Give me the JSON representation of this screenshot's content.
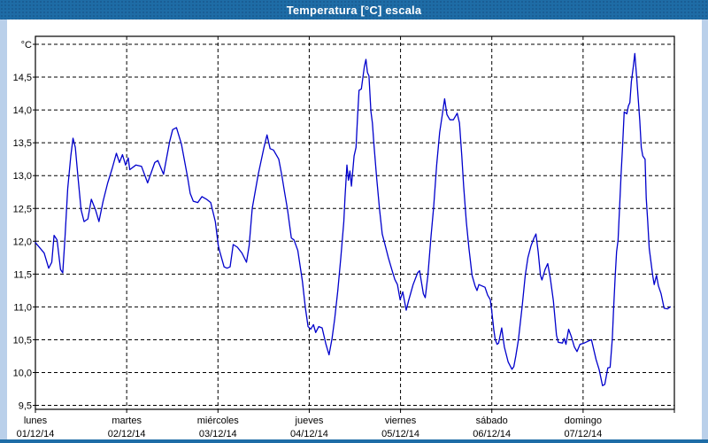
{
  "window": {
    "title": "Temperatura [°C] escala"
  },
  "chart": {
    "unit_label": "°C",
    "y_tick_labels": [
      "14,5",
      "14,0",
      "13,5",
      "13,0",
      "12,5",
      "12,0",
      "11,5",
      "11,0",
      "10,5",
      "10,0",
      "9,5"
    ],
    "x_axis_days": [
      {
        "name": "lunes",
        "date": "01/12/14"
      },
      {
        "name": "martes",
        "date": "02/12/14"
      },
      {
        "name": "miércoles",
        "date": "03/12/14"
      },
      {
        "name": "jueves",
        "date": "04/12/14"
      },
      {
        "name": "viernes",
        "date": "05/12/14"
      },
      {
        "name": "sábado",
        "date": "06/12/14"
      },
      {
        "name": "domingo",
        "date": "07/12/14"
      }
    ],
    "colors": {
      "titlebar_bg": "#1e6ca6",
      "titlebar_text": "#ffffff",
      "frame": "#bad0ea",
      "line": "#0000cc",
      "grid": "#000000",
      "plot_bg": "#ffffff",
      "label_text": "#000000"
    }
  },
  "chart_data": {
    "type": "line",
    "title": "Temperatura [°C] escala",
    "ylabel": "°C",
    "ylim": [
      9.5,
      15.0
    ],
    "y_grid_step": 0.5,
    "x_unit": "hours",
    "x_range_hours": [
      0,
      168
    ],
    "x_tick_labels": [
      "lunes 01/12/14",
      "martes 02/12/14",
      "miércoles 03/12/14",
      "jueves 04/12/14",
      "viernes 05/12/14",
      "sábado 06/12/14",
      "domingo 07/12/14"
    ],
    "grid": "dashed",
    "legend_position": "none",
    "series": [
      {
        "name": "Temperatura [°C]",
        "color": "#0000cc",
        "points": [
          [
            0,
            11.98
          ],
          [
            2.3,
            11.82
          ],
          [
            3.5,
            11.59
          ],
          [
            4.3,
            11.68
          ],
          [
            4.9,
            12.09
          ],
          [
            5.7,
            12.02
          ],
          [
            6.6,
            11.57
          ],
          [
            7.2,
            11.52
          ],
          [
            7.8,
            12.07
          ],
          [
            8.5,
            12.8
          ],
          [
            9.3,
            13.3
          ],
          [
            9.9,
            13.57
          ],
          [
            10.5,
            13.43
          ],
          [
            11.2,
            12.98
          ],
          [
            12,
            12.48
          ],
          [
            12.8,
            12.3
          ],
          [
            13.8,
            12.34
          ],
          [
            14.7,
            12.64
          ],
          [
            15.8,
            12.48
          ],
          [
            16.7,
            12.3
          ],
          [
            17.8,
            12.61
          ],
          [
            19,
            12.89
          ],
          [
            20.2,
            13.11
          ],
          [
            21.3,
            13.34
          ],
          [
            22.1,
            13.2
          ],
          [
            22.9,
            13.32
          ],
          [
            23.7,
            13.16
          ],
          [
            24.4,
            13.27
          ],
          [
            24.8,
            13.09
          ],
          [
            26.4,
            13.16
          ],
          [
            27.9,
            13.14
          ],
          [
            29.5,
            12.89
          ],
          [
            31.4,
            13.2
          ],
          [
            32.2,
            13.23
          ],
          [
            33.7,
            13.02
          ],
          [
            35.3,
            13.52
          ],
          [
            36.1,
            13.7
          ],
          [
            37.1,
            13.73
          ],
          [
            38.4,
            13.48
          ],
          [
            40,
            12.98
          ],
          [
            40.7,
            12.73
          ],
          [
            41.5,
            12.61
          ],
          [
            42.7,
            12.59
          ],
          [
            43.8,
            12.68
          ],
          [
            45,
            12.64
          ],
          [
            46.1,
            12.59
          ],
          [
            47.3,
            12.3
          ],
          [
            48.1,
            11.93
          ],
          [
            48.5,
            11.84
          ],
          [
            49.6,
            11.61
          ],
          [
            50.4,
            11.59
          ],
          [
            51.2,
            11.61
          ],
          [
            52,
            11.95
          ],
          [
            53.1,
            11.91
          ],
          [
            54.3,
            11.82
          ],
          [
            55.5,
            11.68
          ],
          [
            56.2,
            11.93
          ],
          [
            57,
            12.5
          ],
          [
            58.6,
            13.02
          ],
          [
            60.1,
            13.43
          ],
          [
            60.9,
            13.62
          ],
          [
            61.7,
            13.41
          ],
          [
            62.6,
            13.39
          ],
          [
            64,
            13.25
          ],
          [
            64.8,
            13
          ],
          [
            65.5,
            12.75
          ],
          [
            66.3,
            12.48
          ],
          [
            67.3,
            12.05
          ],
          [
            68,
            12.02
          ],
          [
            69,
            11.86
          ],
          [
            70.2,
            11.39
          ],
          [
            71,
            10.98
          ],
          [
            71.7,
            10.7
          ],
          [
            72.4,
            10.66
          ],
          [
            73.1,
            10.73
          ],
          [
            73.7,
            10.61
          ],
          [
            74.5,
            10.7
          ],
          [
            75.4,
            10.68
          ],
          [
            76.4,
            10.43
          ],
          [
            77.2,
            10.27
          ],
          [
            78,
            10.52
          ],
          [
            78.7,
            10.82
          ],
          [
            79.5,
            11.25
          ],
          [
            80.3,
            11.75
          ],
          [
            81.1,
            12.3
          ],
          [
            81.4,
            12.66
          ],
          [
            81.9,
            13.16
          ],
          [
            82.3,
            12.93
          ],
          [
            82.7,
            13.07
          ],
          [
            83.1,
            12.84
          ],
          [
            83.8,
            13.3
          ],
          [
            84.3,
            13.43
          ],
          [
            84.7,
            13.89
          ],
          [
            85.1,
            14.3
          ],
          [
            85.7,
            14.32
          ],
          [
            86.5,
            14.66
          ],
          [
            86.9,
            14.77
          ],
          [
            87.3,
            14.57
          ],
          [
            87.7,
            14.52
          ],
          [
            88.2,
            13.98
          ],
          [
            88.6,
            13.8
          ],
          [
            89,
            13.48
          ],
          [
            89.7,
            12.98
          ],
          [
            90.5,
            12.48
          ],
          [
            91.2,
            12.11
          ],
          [
            92,
            11.93
          ],
          [
            92.8,
            11.75
          ],
          [
            93.7,
            11.57
          ],
          [
            94.5,
            11.42
          ],
          [
            95.2,
            11.34
          ],
          [
            95.9,
            11.11
          ],
          [
            96.6,
            11.23
          ],
          [
            97.5,
            10.95
          ],
          [
            98.1,
            11.09
          ],
          [
            99.3,
            11.34
          ],
          [
            100.5,
            11.52
          ],
          [
            101,
            11.55
          ],
          [
            102,
            11.2
          ],
          [
            102.5,
            11.14
          ],
          [
            103.2,
            11.48
          ],
          [
            104,
            12.07
          ],
          [
            104.7,
            12.52
          ],
          [
            105.5,
            13.16
          ],
          [
            106.3,
            13.66
          ],
          [
            107,
            13.93
          ],
          [
            107.6,
            14.17
          ],
          [
            108.2,
            13.93
          ],
          [
            109,
            13.85
          ],
          [
            109.9,
            13.85
          ],
          [
            110.9,
            13.95
          ],
          [
            111.5,
            13.8
          ],
          [
            112.1,
            13.3
          ],
          [
            112.6,
            12.84
          ],
          [
            113.3,
            12.3
          ],
          [
            114,
            11.89
          ],
          [
            114.8,
            11.48
          ],
          [
            115.6,
            11.32
          ],
          [
            116.1,
            11.25
          ],
          [
            116.6,
            11.34
          ],
          [
            117.4,
            11.32
          ],
          [
            118.2,
            11.3
          ],
          [
            118.9,
            11.18
          ],
          [
            119.6,
            11.11
          ],
          [
            120,
            10.93
          ],
          [
            120.5,
            10.66
          ],
          [
            120.9,
            10.5
          ],
          [
            121.4,
            10.43
          ],
          [
            121.8,
            10.45
          ],
          [
            122.6,
            10.68
          ],
          [
            123.3,
            10.39
          ],
          [
            124.3,
            10.16
          ],
          [
            125.3,
            10.05
          ],
          [
            125.8,
            10.09
          ],
          [
            126.3,
            10.25
          ],
          [
            127,
            10.5
          ],
          [
            128,
            11.02
          ],
          [
            128.8,
            11.48
          ],
          [
            129.5,
            11.75
          ],
          [
            130.3,
            11.93
          ],
          [
            131.1,
            12.05
          ],
          [
            131.6,
            12.11
          ],
          [
            132.2,
            11.84
          ],
          [
            132.8,
            11.48
          ],
          [
            133.2,
            11.41
          ],
          [
            134,
            11.57
          ],
          [
            134.7,
            11.66
          ],
          [
            135.4,
            11.43
          ],
          [
            136.2,
            11.09
          ],
          [
            137,
            10.57
          ],
          [
            137.5,
            10.46
          ],
          [
            138.6,
            10.45
          ],
          [
            139,
            10.52
          ],
          [
            139.5,
            10.43
          ],
          [
            140.2,
            10.66
          ],
          [
            140.9,
            10.55
          ],
          [
            141.7,
            10.39
          ],
          [
            142.4,
            10.32
          ],
          [
            143.2,
            10.43
          ],
          [
            144.3,
            10.45
          ],
          [
            145.4,
            10.48
          ],
          [
            146.2,
            10.5
          ],
          [
            147.4,
            10.2
          ],
          [
            148.2,
            10.05
          ],
          [
            149.1,
            9.8
          ],
          [
            149.7,
            9.82
          ],
          [
            150.5,
            10.07
          ],
          [
            151.1,
            10.08
          ],
          [
            151.7,
            10.52
          ],
          [
            152,
            10.93
          ],
          [
            152.4,
            11.43
          ],
          [
            152.8,
            11.84
          ],
          [
            153.2,
            12.02
          ],
          [
            153.6,
            12.52
          ],
          [
            154,
            13.02
          ],
          [
            154.4,
            13.48
          ],
          [
            154.8,
            13.97
          ],
          [
            155.5,
            13.94
          ],
          [
            155.9,
            14.06
          ],
          [
            156.3,
            14.11
          ],
          [
            156.7,
            14.43
          ],
          [
            157.2,
            14.66
          ],
          [
            157.6,
            14.86
          ],
          [
            158.1,
            14.48
          ],
          [
            158.5,
            14.16
          ],
          [
            158.9,
            13.84
          ],
          [
            159.3,
            13.43
          ],
          [
            159.7,
            13.3
          ],
          [
            160.3,
            13.25
          ],
          [
            160.6,
            12.66
          ],
          [
            161,
            12.3
          ],
          [
            161.4,
            11.89
          ],
          [
            161.9,
            11.66
          ],
          [
            162.3,
            11.48
          ],
          [
            162.7,
            11.34
          ],
          [
            163.3,
            11.48
          ],
          [
            163.8,
            11.32
          ],
          [
            164.5,
            11.2
          ],
          [
            165.3,
            10.98
          ],
          [
            166.2,
            10.97
          ],
          [
            166.9,
            11.0
          ]
        ]
      }
    ]
  }
}
